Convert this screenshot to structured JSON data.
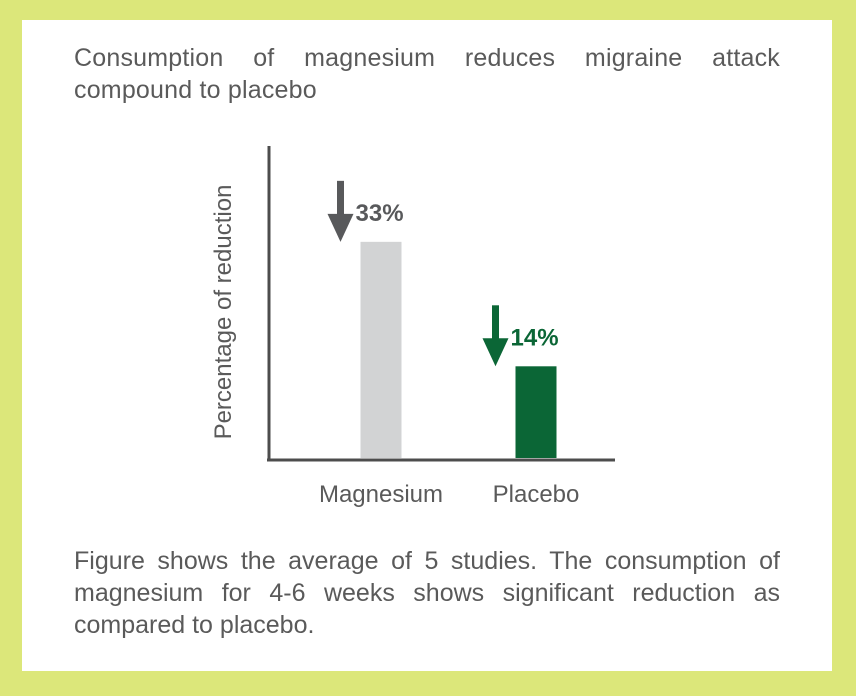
{
  "colors": {
    "frame": "#dce77a",
    "card": "#ffffff",
    "text": "#5a5a5a",
    "magnesium_bar": "#d2d3d4",
    "magnesium_label": "#58595b",
    "placebo_bar": "#0b6636",
    "placebo_label": "#0b6636"
  },
  "title": "Consumption of magnesium reduces migraine attack compound to placebo",
  "caption": "Figure shows the average of 5 studies. The consumption of magnesium for 4-6 weeks shows significant reduction as compared to placebo.",
  "chart_data": {
    "type": "bar",
    "ylabel": "Percentage of reduction",
    "categories": [
      "Magnesium",
      "Placebo"
    ],
    "values": [
      33,
      14
    ],
    "data_labels": [
      "33%",
      "14%"
    ],
    "arrow_icon": "down-arrow-icon",
    "ylim": [
      0,
      100
    ],
    "grid": false
  }
}
